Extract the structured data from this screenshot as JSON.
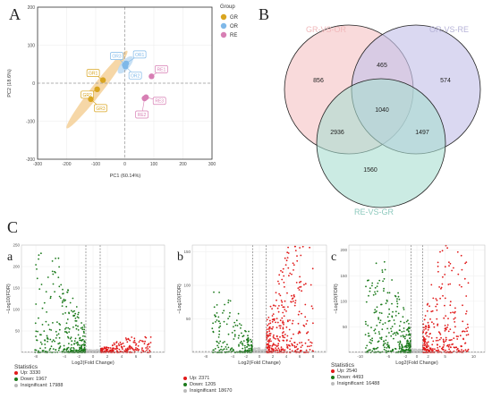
{
  "panels": {
    "A": "A",
    "B": "B",
    "C": "C",
    "a": "a",
    "b": "b",
    "c": "c"
  },
  "pca": {
    "xlabel": "PC1 (60.14%)",
    "ylabel": "PC2 (18.6%)",
    "legend_title": "Group",
    "legend": [
      {
        "name": "GR",
        "color": "#d9a520"
      },
      {
        "name": "OR",
        "color": "#7fb8e8"
      },
      {
        "name": "RE",
        "color": "#d77fb4"
      }
    ]
  },
  "venn": {
    "labels": {
      "gr_or": "GR-VS-OR",
      "or_re": "OR-VS-RE",
      "re_gr": "RE-VS-GR"
    },
    "counts": {
      "gr_or_only": "856",
      "or_re_only": "574",
      "re_gr_only": "1560",
      "gr_or__or_re": "465",
      "gr_or__re_gr": "2936",
      "or_re__re_gr": "1497",
      "all": "1040"
    }
  },
  "volcano": {
    "xlabel": "Log2(Fold Change)",
    "ylabel": "−Log10(FDR)",
    "stats_title": "Statistics",
    "stats_a": {
      "up": "Up: 3330",
      "down": "Down: 1967",
      "insig": "Insignificant: 17988"
    },
    "stats_b": {
      "up": "Up: 2371",
      "down": "Down: 1205",
      "insig": "Insignificant: 18670"
    },
    "stats_c": {
      "up": "Up: 2540",
      "down": "Down: 4493",
      "insig": "Insignificant: 16488"
    }
  },
  "chart_data": [
    {
      "type": "scatter",
      "xlabel": "PC1 (60.14%)",
      "ylabel": "PC2 (18.6%)",
      "xlim": [
        -300,
        300
      ],
      "ylim": [
        -200,
        200
      ],
      "x_ticks": [
        "-300",
        "-200",
        "-100",
        "0",
        "100",
        "200",
        "300"
      ],
      "y_ticks": [
        "-200",
        "-100",
        "0",
        "100",
        "200"
      ],
      "grid": true,
      "legend_position": "top-right",
      "series": [
        {
          "name": "GR",
          "color": "#d9a520",
          "points": [
            {
              "label": "GR1",
              "x": -75,
              "y": 8
            },
            {
              "label": "GR2",
              "x": -95,
              "y": -16
            },
            {
              "label": "GR3",
              "x": -117,
              "y": -42
            }
          ]
        },
        {
          "name": "OR",
          "color": "#7fb8e8",
          "points": [
            {
              "label": "OR1",
              "x": 5,
              "y": 52
            },
            {
              "label": "OR2",
              "x": 2,
              "y": 44
            },
            {
              "label": "OR3",
              "x": 0,
              "y": 48
            }
          ]
        },
        {
          "name": "RE",
          "color": "#d77fb4",
          "points": [
            {
              "label": "RE1",
              "x": 92,
              "y": 18
            },
            {
              "label": "RE2",
              "x": 68,
              "y": -40
            },
            {
              "label": "RE3",
              "x": 73,
              "y": -37
            }
          ]
        }
      ]
    },
    {
      "type": "venn",
      "sets": [
        "GR-VS-OR",
        "OR-VS-RE",
        "RE-VS-GR"
      ],
      "regions": {
        "GR-VS-OR only": 856,
        "OR-VS-RE only": 574,
        "RE-VS-GR only": 1560,
        "GR-VS-OR & OR-VS-RE": 465,
        "GR-VS-OR & RE-VS-GR": 2936,
        "OR-VS-RE & RE-VS-GR": 1497,
        "all": 1040
      }
    },
    {
      "type": "scatter",
      "subtype": "volcano",
      "panel": "a",
      "xlabel": "Log2(Fold Change)",
      "ylabel": "−Log10(FDR)",
      "x_ticks": [
        "-8",
        "-4",
        "-2",
        "0",
        "2",
        "4",
        "6",
        "8"
      ],
      "y_ticks": [
        "50",
        "100",
        "150",
        "200",
        "250"
      ],
      "ylim": [
        0,
        250
      ],
      "stats": {
        "Up": 3330,
        "Down": 1967,
        "Insignificant": 17988
      }
    },
    {
      "type": "scatter",
      "subtype": "volcano",
      "panel": "b",
      "xlabel": "Log2(Fold Change)",
      "ylabel": "−Log10(FDR)",
      "x_ticks": [
        "-8",
        "-4",
        "-2",
        "0",
        "2",
        "4",
        "6",
        "8"
      ],
      "y_ticks": [
        "50",
        "100",
        "150"
      ],
      "ylim": [
        0,
        160
      ],
      "stats": {
        "Up": 2371,
        "Down": 1205,
        "Insignificant": 18670
      }
    },
    {
      "type": "scatter",
      "subtype": "volcano",
      "panel": "c",
      "xlabel": "Log2(Fold Change)",
      "ylabel": "−Log10(FDR)",
      "x_ticks": [
        "-10",
        "-5",
        "-2",
        "0",
        "2",
        "5",
        "10"
      ],
      "y_ticks": [
        "50",
        "100",
        "150",
        "200"
      ],
      "ylim": [
        0,
        210
      ],
      "stats": {
        "Up": 2540,
        "Down": 4493,
        "Insignificant": 16488
      }
    }
  ]
}
